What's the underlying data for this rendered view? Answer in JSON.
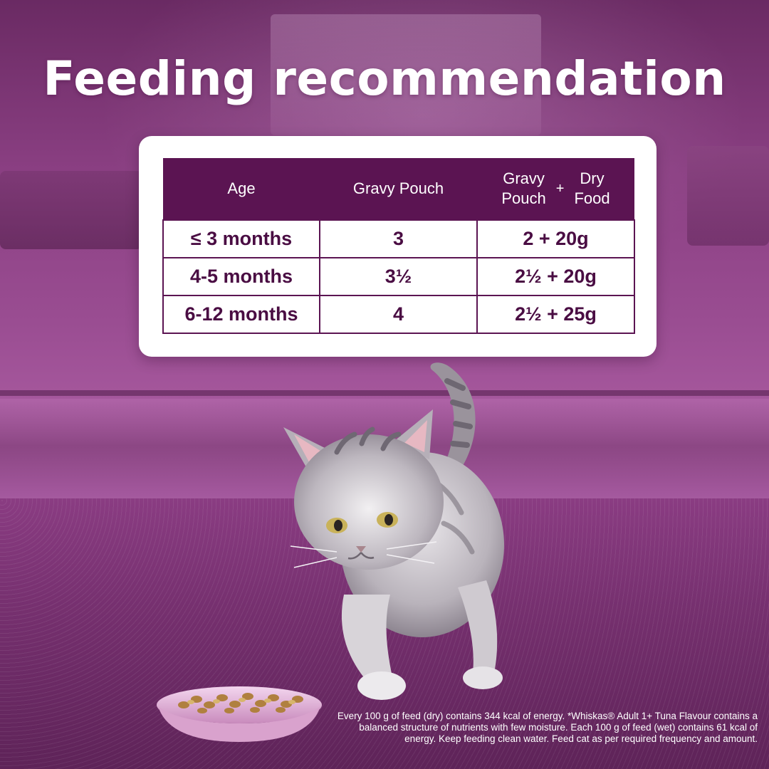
{
  "title": "Feeding recommendation",
  "table": {
    "headers": {
      "age": "Age",
      "gravy_pouch": "Gravy Pouch",
      "combo": {
        "left": [
          "Gravy",
          "Pouch"
        ],
        "plus": "+",
        "right": [
          "Dry",
          "Food"
        ]
      }
    },
    "rows": [
      {
        "age": "≤ 3 months",
        "gravy_pouch": "3",
        "combo": "2 + 20g"
      },
      {
        "age": "4-5 months",
        "gravy_pouch": "3½",
        "combo": "2½ + 20g"
      },
      {
        "age": "6-12 months",
        "gravy_pouch": "4",
        "combo": "2½ + 25g"
      }
    ]
  },
  "disclaimer": "Every 100 g of feed (dry) contains 344 kcal of energy. *Whiskas® Adult 1+ Tuna Flavour contains a balanced structure of nutrients with few moisture. Each 100 g of feed (wet) contains 61 kcal of energy. Keep feeding clean water. Feed cat as per required frequency and amount.",
  "colors": {
    "table_header": "#5b1452",
    "table_text": "#4a0d43",
    "background": "#8a3f82"
  },
  "images": {
    "hero": "grey-tabby-kitten",
    "bowl": "food-bowl-with-dry-kibble"
  }
}
